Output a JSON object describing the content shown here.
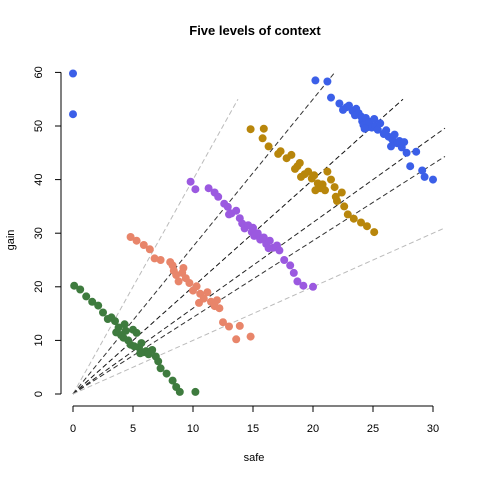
{
  "chart_data": {
    "type": "scatter",
    "title": "Five levels of context",
    "xlabel": "safe",
    "ylabel": "gain",
    "xlim": [
      0,
      31
    ],
    "ylim": [
      0,
      60
    ],
    "x_ticks": [
      0,
      5,
      10,
      15,
      20,
      25,
      30
    ],
    "y_ticks": [
      0,
      10,
      20,
      30,
      40,
      50,
      60
    ],
    "grid": false,
    "legend": "none",
    "reference_lines": [
      {
        "slope": 4.0,
        "x_end": 13.75,
        "color": "#bbbbbb",
        "style": "dashed"
      },
      {
        "slope": 2.75,
        "x_end": 21.8,
        "color": "#333333",
        "style": "dashed"
      },
      {
        "slope": 2.0,
        "x_end": 27.5,
        "color": "#111111",
        "style": "dashed"
      },
      {
        "slope": 1.6,
        "x_end": 31,
        "color": "#222222",
        "style": "dashed"
      },
      {
        "slope": 1.43,
        "x_end": 31,
        "color": "#333333",
        "style": "dashed"
      },
      {
        "slope": 1.0,
        "x_end": 31,
        "color": "#bbbbbb",
        "style": "dashed"
      }
    ],
    "series": [
      {
        "color": "#3b5fe8",
        "points": [
          [
            0,
            59.8
          ],
          [
            0,
            52.2
          ],
          [
            20.2,
            58.5
          ],
          [
            21.2,
            58.3
          ],
          [
            21.5,
            55.3
          ],
          [
            22.2,
            54.2
          ],
          [
            22.8,
            53.5
          ],
          [
            23.0,
            53.8
          ],
          [
            23.3,
            52.8
          ],
          [
            23.6,
            53.2
          ],
          [
            23.8,
            52.4
          ],
          [
            24.0,
            51.8
          ],
          [
            24.1,
            50.9
          ],
          [
            24.2,
            50.2
          ],
          [
            24.4,
            51.5
          ],
          [
            24.6,
            49.8
          ],
          [
            24.7,
            50.8
          ],
          [
            24.9,
            49.7
          ],
          [
            25.1,
            51.3
          ],
          [
            25.2,
            50.0
          ],
          [
            25.4,
            49.3
          ],
          [
            25.6,
            50.5
          ],
          [
            25.9,
            48.5
          ],
          [
            26.1,
            49.2
          ],
          [
            26.3,
            48.0
          ],
          [
            26.6,
            47.5
          ],
          [
            26.8,
            48.4
          ],
          [
            27.0,
            46.8
          ],
          [
            27.2,
            47.2
          ],
          [
            27.4,
            46.0
          ],
          [
            27.6,
            47.0
          ],
          [
            27.8,
            45.0
          ],
          [
            28.1,
            42.5
          ],
          [
            28.6,
            45.2
          ],
          [
            29.1,
            41.7
          ],
          [
            29.3,
            40.5
          ],
          [
            30.0,
            40.0
          ],
          [
            22.5,
            53.0
          ],
          [
            23.5,
            52.0
          ],
          [
            24.3,
            49.5
          ],
          [
            26.0,
            48.8
          ],
          [
            26.5,
            46.2
          ]
        ]
      },
      {
        "color": "#b8860b",
        "points": [
          [
            14.8,
            49.4
          ],
          [
            15.9,
            49.5
          ],
          [
            15.8,
            47.7
          ],
          [
            16.3,
            46.2
          ],
          [
            17.1,
            44.8
          ],
          [
            17.3,
            45.3
          ],
          [
            17.8,
            44.0
          ],
          [
            18.2,
            44.6
          ],
          [
            18.7,
            42.5
          ],
          [
            18.9,
            43.1
          ],
          [
            19.3,
            41.0
          ],
          [
            19.6,
            41.5
          ],
          [
            19.9,
            40.2
          ],
          [
            20.1,
            40.8
          ],
          [
            20.4,
            39.3
          ],
          [
            20.6,
            38.4
          ],
          [
            20.8,
            39.1
          ],
          [
            21.0,
            38.0
          ],
          [
            21.2,
            41.5
          ],
          [
            21.5,
            40.0
          ],
          [
            21.8,
            38.6
          ],
          [
            22.0,
            36.0
          ],
          [
            22.4,
            37.6
          ],
          [
            22.6,
            35.0
          ],
          [
            22.9,
            33.5
          ],
          [
            23.4,
            32.7
          ],
          [
            24.0,
            32.0
          ],
          [
            24.5,
            31.3
          ],
          [
            25.1,
            30.2
          ],
          [
            18.5,
            42.0
          ],
          [
            19.0,
            40.5
          ],
          [
            20.2,
            38.0
          ],
          [
            21.9,
            36.8
          ]
        ]
      },
      {
        "color": "#9b59e0",
        "points": [
          [
            9.8,
            39.6
          ],
          [
            10.2,
            38.2
          ],
          [
            11.3,
            38.4
          ],
          [
            11.8,
            37.6
          ],
          [
            12.1,
            36.8
          ],
          [
            12.6,
            35.5
          ],
          [
            12.9,
            34.9
          ],
          [
            13.2,
            33.7
          ],
          [
            13.6,
            34.2
          ],
          [
            13.9,
            32.8
          ],
          [
            14.1,
            31.8
          ],
          [
            14.3,
            30.9
          ],
          [
            14.6,
            31.5
          ],
          [
            14.9,
            30.2
          ],
          [
            15.1,
            29.5
          ],
          [
            15.4,
            30.0
          ],
          [
            15.6,
            28.8
          ],
          [
            15.9,
            29.2
          ],
          [
            16.1,
            28.0
          ],
          [
            16.4,
            28.6
          ],
          [
            16.7,
            27.3
          ],
          [
            17.0,
            27.7
          ],
          [
            17.2,
            26.8
          ],
          [
            17.6,
            25.0
          ],
          [
            18.1,
            24.0
          ],
          [
            18.4,
            22.6
          ],
          [
            18.7,
            21.0
          ],
          [
            19.2,
            20.2
          ],
          [
            20.0,
            20.0
          ],
          [
            13.0,
            33.5
          ],
          [
            15.0,
            31.0
          ],
          [
            16.3,
            27.2
          ]
        ]
      },
      {
        "color": "#e8856a",
        "points": [
          [
            4.8,
            29.3
          ],
          [
            5.3,
            28.6
          ],
          [
            5.9,
            27.8
          ],
          [
            6.4,
            27.0
          ],
          [
            6.8,
            25.3
          ],
          [
            7.3,
            25.0
          ],
          [
            8.1,
            24.6
          ],
          [
            8.3,
            24.0
          ],
          [
            8.4,
            23.0
          ],
          [
            8.6,
            22.2
          ],
          [
            8.8,
            21.0
          ],
          [
            9.1,
            22.6
          ],
          [
            9.4,
            21.6
          ],
          [
            9.7,
            20.7
          ],
          [
            10.0,
            19.3
          ],
          [
            10.3,
            20.1
          ],
          [
            10.6,
            18.7
          ],
          [
            10.9,
            17.8
          ],
          [
            11.2,
            19.0
          ],
          [
            11.5,
            17.2
          ],
          [
            11.8,
            16.4
          ],
          [
            12.0,
            17.5
          ],
          [
            12.2,
            16.0
          ],
          [
            12.5,
            13.4
          ],
          [
            13.0,
            12.6
          ],
          [
            13.6,
            10.2
          ],
          [
            13.9,
            12.7
          ],
          [
            14.8,
            10.7
          ],
          [
            9.2,
            23.5
          ],
          [
            10.5,
            17.0
          ]
        ]
      },
      {
        "color": "#3e7b3e",
        "points": [
          [
            0.1,
            20.2
          ],
          [
            0.6,
            19.5
          ],
          [
            1.1,
            18.2
          ],
          [
            1.6,
            17.2
          ],
          [
            2.1,
            16.5
          ],
          [
            2.5,
            15.2
          ],
          [
            2.9,
            14.0
          ],
          [
            3.2,
            14.3
          ],
          [
            3.5,
            13.6
          ],
          [
            3.8,
            12.4
          ],
          [
            3.6,
            11.5
          ],
          [
            4.0,
            11.0
          ],
          [
            4.2,
            10.5
          ],
          [
            4.4,
            11.8
          ],
          [
            4.6,
            10.0
          ],
          [
            4.8,
            9.2
          ],
          [
            5.0,
            12.0
          ],
          [
            5.3,
            11.4
          ],
          [
            5.5,
            8.7
          ],
          [
            5.7,
            9.5
          ],
          [
            5.9,
            7.8
          ],
          [
            6.1,
            8.0
          ],
          [
            6.3,
            7.4
          ],
          [
            6.6,
            8.2
          ],
          [
            6.9,
            7.0
          ],
          [
            7.1,
            6.1
          ],
          [
            7.3,
            4.8
          ],
          [
            7.8,
            3.8
          ],
          [
            8.3,
            2.5
          ],
          [
            8.6,
            1.3
          ],
          [
            8.9,
            0.4
          ],
          [
            10.2,
            0.4
          ],
          [
            4.3,
            13.0
          ],
          [
            5.1,
            8.9
          ],
          [
            5.6,
            7.6
          ]
        ]
      }
    ]
  }
}
